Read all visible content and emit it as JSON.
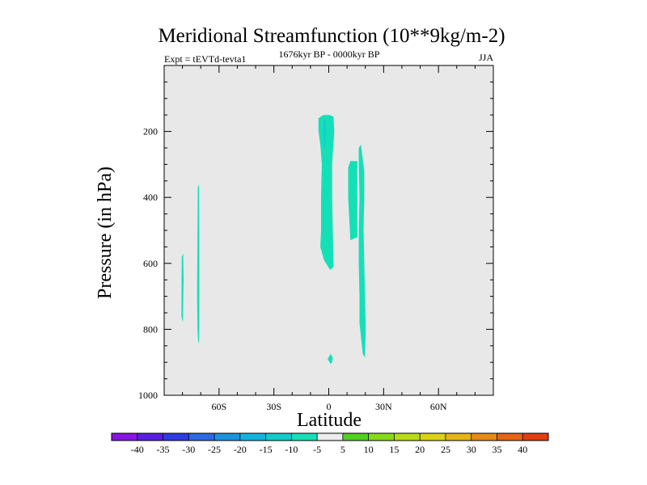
{
  "chart_data": {
    "type": "contour",
    "title": "Meridional Streamfunction (10**9kg/m-2)",
    "subtitle_left": "Expt = tEVTd-tevta1",
    "subtitle_center": "1676kyr BP - 0000kyr BP",
    "subtitle_right": "JJA",
    "xlabel": "Latitude",
    "ylabel": "Pressure (in hPa)",
    "xlim": [
      -90,
      90
    ],
    "ylim": [
      0,
      1000
    ],
    "x_ticks": [
      {
        "value": -60,
        "label": "60S"
      },
      {
        "value": -30,
        "label": "30S"
      },
      {
        "value": 0,
        "label": "0"
      },
      {
        "value": 30,
        "label": "30N"
      },
      {
        "value": 60,
        "label": "60N"
      }
    ],
    "y_ticks": [
      {
        "value": 200,
        "label": "200"
      },
      {
        "value": 400,
        "label": "400"
      },
      {
        "value": 600,
        "label": "600"
      },
      {
        "value": 800,
        "label": "800"
      },
      {
        "value": 1000,
        "label": "1000"
      }
    ],
    "background_color": "#e8e8e8",
    "colorbar": {
      "levels": [
        "-40",
        "-35",
        "-30",
        "-25",
        "-20",
        "-15",
        "-10",
        "-5",
        "5",
        "10",
        "15",
        "20",
        "25",
        "30",
        "35",
        "40"
      ],
      "colors": [
        "#8a14e6",
        "#5a1ee6",
        "#2e3ae6",
        "#2a6ae6",
        "#1a94e0",
        "#10b4e0",
        "#10cccc",
        "#14e0b8",
        "#ececec",
        "#4ed21e",
        "#86dc14",
        "#b8dc14",
        "#dcd214",
        "#e6b414",
        "#e68a14",
        "#e66414",
        "#e63c10"
      ]
    },
    "regions": [
      {
        "name": "west-strip-a",
        "color": "#14e0b8",
        "points": [
          [
            -80.4,
            580
          ],
          [
            -79.6,
            570
          ],
          [
            -79.4,
            650
          ],
          [
            -79.8,
            780
          ],
          [
            -80.6,
            760
          ]
        ]
      },
      {
        "name": "west-strip-b",
        "color": "#14e0b8",
        "points": [
          [
            -71.6,
            370
          ],
          [
            -71.0,
            360
          ],
          [
            -70.8,
            500
          ],
          [
            -70.8,
            800
          ],
          [
            -71.0,
            840
          ],
          [
            -71.4,
            840
          ],
          [
            -71.8,
            800
          ],
          [
            -72.0,
            700
          ],
          [
            -71.8,
            500
          ]
        ]
      },
      {
        "name": "central-column",
        "color": "#14e0b8",
        "points": [
          [
            -5.6,
            160
          ],
          [
            -3.0,
            150
          ],
          [
            0.4,
            150
          ],
          [
            2.6,
            155
          ],
          [
            3.0,
            200
          ],
          [
            1.8,
            300
          ],
          [
            1.8,
            400
          ],
          [
            2.2,
            500
          ],
          [
            2.6,
            610
          ],
          [
            0.8,
            620
          ],
          [
            -2.6,
            590
          ],
          [
            -4.6,
            550
          ],
          [
            -4.2,
            500
          ],
          [
            -4.2,
            400
          ],
          [
            -3.8,
            300
          ],
          [
            -4.6,
            240
          ],
          [
            -5.6,
            200
          ]
        ]
      },
      {
        "name": "central-inner",
        "color": "#14ccd0",
        "points": [
          [
            -3.0,
            170
          ],
          [
            -1.8,
            160
          ],
          [
            -1.4,
            210
          ],
          [
            -2.2,
            260
          ],
          [
            -2.6,
            230
          ]
        ]
      },
      {
        "name": "north-tall-column",
        "color": "#14e0b8",
        "points": [
          [
            16.4,
            250
          ],
          [
            17.6,
            240
          ],
          [
            19.4,
            320
          ],
          [
            19.4,
            400
          ],
          [
            19.0,
            500
          ],
          [
            19.4,
            600
          ],
          [
            19.8,
            700
          ],
          [
            20.2,
            800
          ],
          [
            19.8,
            885
          ],
          [
            18.6,
            875
          ],
          [
            16.8,
            780
          ],
          [
            16.8,
            700
          ],
          [
            16.4,
            600
          ],
          [
            16.4,
            500
          ],
          [
            16.8,
            400
          ],
          [
            16.4,
            300
          ]
        ]
      },
      {
        "name": "north-short-column",
        "color": "#14e0b8",
        "points": [
          [
            10.6,
            310
          ],
          [
            11.8,
            290
          ],
          [
            15.6,
            290
          ],
          [
            15.6,
            400
          ],
          [
            15.6,
            520
          ],
          [
            11.8,
            530
          ],
          [
            10.6,
            400
          ]
        ]
      },
      {
        "name": "surface-spot",
        "color": "#14e0b8",
        "points": [
          [
            -0.6,
            890
          ],
          [
            1.0,
            875
          ],
          [
            2.2,
            885
          ],
          [
            1.8,
            900
          ],
          [
            1.0,
            905
          ]
        ]
      }
    ]
  }
}
